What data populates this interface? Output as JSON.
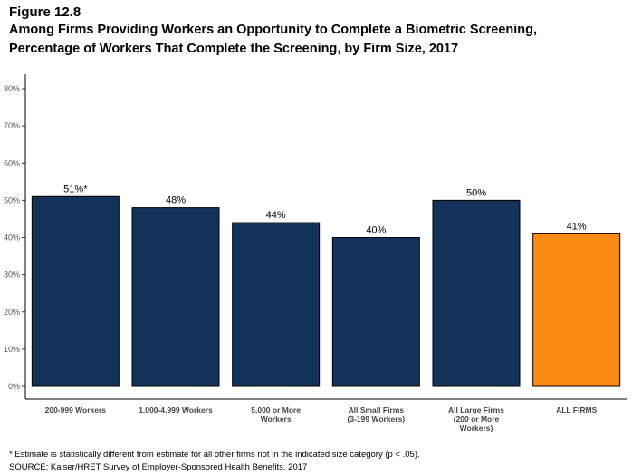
{
  "figure_label": "Figure 12.8",
  "title_lines": [
    "Among Firms Providing Workers an Opportunity to Complete a Biometric Screening,",
    "Percentage of Workers That Complete the Screening, by Firm Size, 2017"
  ],
  "footnotes": {
    "note": "* Estimate is statistically different from estimate for all other firms not in the indicated size category (p < .05).",
    "source": "SOURCE: Kaiser/HRET Survey of Employer-Sponsored Health Benefits, 2017"
  },
  "chart_data": {
    "type": "bar",
    "categories": [
      [
        "200-999 Workers"
      ],
      [
        "1,000-4,999 Workers"
      ],
      [
        "5,000 or More",
        "Workers"
      ],
      [
        "All Small Firms",
        "(3-199 Workers)"
      ],
      [
        "All Large Firms",
        "(200 or More",
        "Workers)"
      ],
      [
        "ALL FIRMS"
      ]
    ],
    "values": [
      51,
      48,
      44,
      40,
      50,
      41
    ],
    "data_labels": [
      "51%*",
      "48%",
      "44%",
      "40%",
      "50%",
      "41%"
    ],
    "bar_colors": [
      "#13335a",
      "#13335a",
      "#13335a",
      "#13335a",
      "#13335a",
      "#fb8a13"
    ],
    "ylim": [
      0,
      80
    ],
    "yticks": [
      0,
      10,
      20,
      30,
      40,
      50,
      60,
      70,
      80
    ],
    "ytick_labels": [
      "0%",
      "10%",
      "20%",
      "30%",
      "40%",
      "50%",
      "60%",
      "70%",
      "80%"
    ],
    "grid": false,
    "legend": "none"
  }
}
